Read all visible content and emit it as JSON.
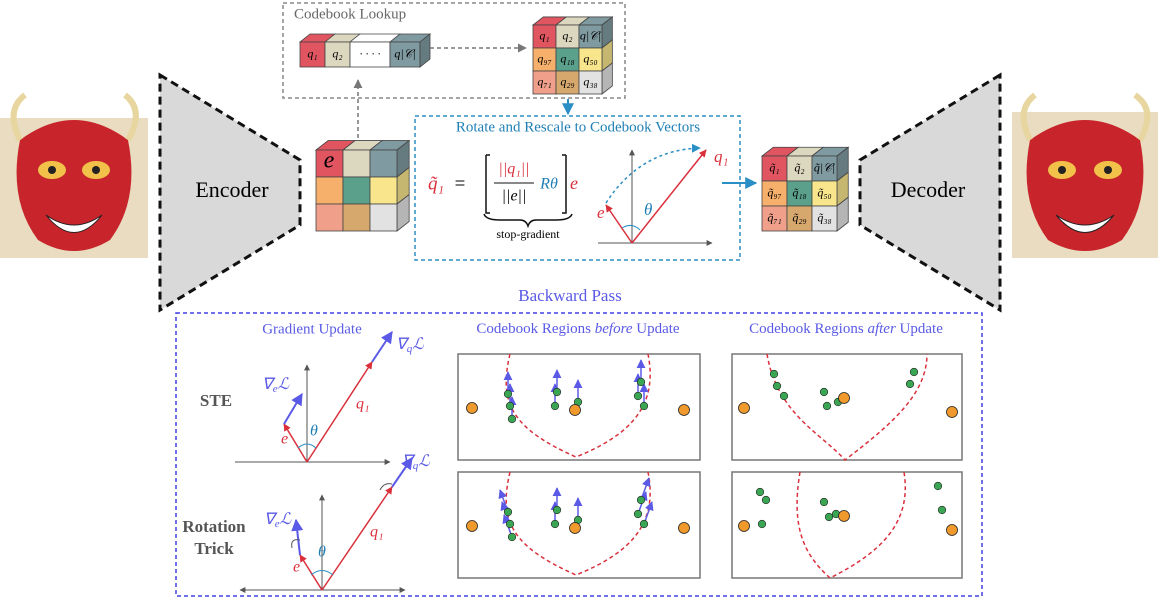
{
  "encoder": "Encoder",
  "decoder": "Decoder",
  "input_vector": "e",
  "lookup": {
    "title": "Codebook Lookup",
    "vector": [
      "q₁",
      "q₂",
      "· · · ·",
      "q|𝒞|"
    ],
    "grid": [
      [
        "q₁",
        "q₂",
        "q|𝒞|"
      ],
      [
        "q₉₇",
        "q₁₈",
        "q₅₀"
      ],
      [
        "q₇₁",
        "q₂₉",
        "q₃₈"
      ]
    ]
  },
  "rotate": {
    "title": "Rotate and Rescale to Codebook Vectors",
    "lhs": "q̃₁",
    "eq": "=",
    "num": "||q₁||",
    "den": "||e||",
    "rot": "Rθ",
    "e": "e",
    "brace_label": "stop-gradient",
    "vec_q": "q₁",
    "vec_e": "e",
    "angle": "θ"
  },
  "output_grid": [
    [
      "q̃₁",
      "q̃₂",
      "q̃|𝒞|"
    ],
    [
      "q̃₉₇",
      "q̃₁₈",
      "q̃₅₀"
    ],
    [
      "q̃₇₁",
      "q̃₂₉",
      "q̃₃₈"
    ]
  ],
  "backward": {
    "title": "Backward Pass",
    "gradient_header": "Gradient Update",
    "before_header": [
      "Codebook Regions",
      "before",
      "Update"
    ],
    "after_header": [
      "Codebook Regions",
      "after",
      "Update"
    ],
    "rows": [
      {
        "label": [
          "STE"
        ],
        "grad_q": [
          "∇",
          "q",
          "ℒ"
        ],
        "grad_e": [
          "∇",
          "e",
          "ℒ"
        ],
        "q": "q₁",
        "e": "e",
        "angle": "θ"
      },
      {
        "label": [
          "Rotation",
          "Trick"
        ],
        "grad_q": [
          "∇",
          "q",
          "ℒ"
        ],
        "grad_e": [
          "∇",
          "e",
          "ℒ"
        ],
        "q": "q₁",
        "e": "e",
        "angle": "θ"
      }
    ]
  }
}
